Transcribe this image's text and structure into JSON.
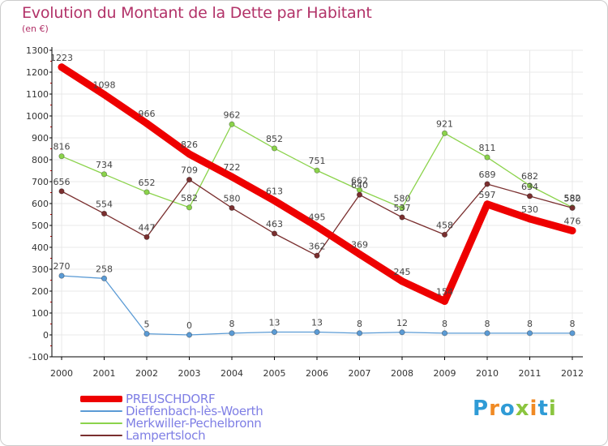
{
  "title": "Evolution du Montant de la Dette par Habitant",
  "unit_label": "(en €)",
  "logo_text": "Proxiti",
  "colors": {
    "title": "#b23268",
    "legend_text": "#7f7fe5",
    "axis": "#000000",
    "grid": "#e8e8e8",
    "logo": [
      "#2f9bd6",
      "#f08a24",
      "#2f9bd6",
      "#8bc53f",
      "#f08a24",
      "#2f9bd6",
      "#8bc53f"
    ]
  },
  "chart_data": {
    "type": "line",
    "x": [
      "2000",
      "2001",
      "2002",
      "2003",
      "2004",
      "2005",
      "2006",
      "2007",
      "2008",
      "2009",
      "2010",
      "2011",
      "2012"
    ],
    "ylim": [
      -100,
      1300
    ],
    "yticks": [
      -100,
      0,
      100,
      200,
      300,
      400,
      500,
      600,
      700,
      800,
      900,
      1000,
      1100,
      1200,
      1300
    ],
    "grid": true,
    "legend_position": "bottom-left",
    "series": [
      {
        "name": "PREUSCHDORF",
        "color": "#ee0000",
        "style": "thick",
        "values": [
          1223,
          1098,
          966,
          826,
          722,
          613,
          495,
          369,
          245,
          154,
          597,
          530,
          476
        ],
        "labels": [
          "1223",
          "1098",
          "966",
          "826",
          "722",
          "613",
          "495",
          "369",
          "245",
          "154",
          "597",
          "530",
          "476"
        ]
      },
      {
        "name": "Dieffenbach-lès-Woerth",
        "color": "#5b9bd5",
        "style": "thin",
        "values": [
          270,
          258,
          5,
          0,
          8,
          13,
          13,
          8,
          12,
          8,
          8,
          8,
          8
        ],
        "labels": [
          "270",
          "258",
          "5",
          "0",
          "8",
          "13",
          "13",
          "8",
          "12",
          "8",
          "8",
          "8",
          "8"
        ]
      },
      {
        "name": "Merkwiller-Pechelbronn",
        "color": "#8bd34b",
        "style": "thin",
        "values": [
          816,
          734,
          652,
          582,
          962,
          852,
          751,
          662,
          580,
          921,
          811,
          682,
          582
        ],
        "labels": [
          "816",
          "734",
          "652",
          "582",
          "962",
          "852",
          "751",
          "662",
          "580",
          "921",
          "811",
          "682",
          "582"
        ]
      },
      {
        "name": "Lampertsloch",
        "color": "#7a2f2f",
        "style": "thin",
        "values": [
          656,
          554,
          447,
          709,
          580,
          463,
          362,
          640,
          537,
          458,
          689,
          634,
          580
        ],
        "labels": [
          "656",
          "554",
          "447",
          "709",
          "580",
          "463",
          "362",
          "640",
          "537",
          "458",
          "689",
          "634",
          "580"
        ]
      }
    ]
  }
}
